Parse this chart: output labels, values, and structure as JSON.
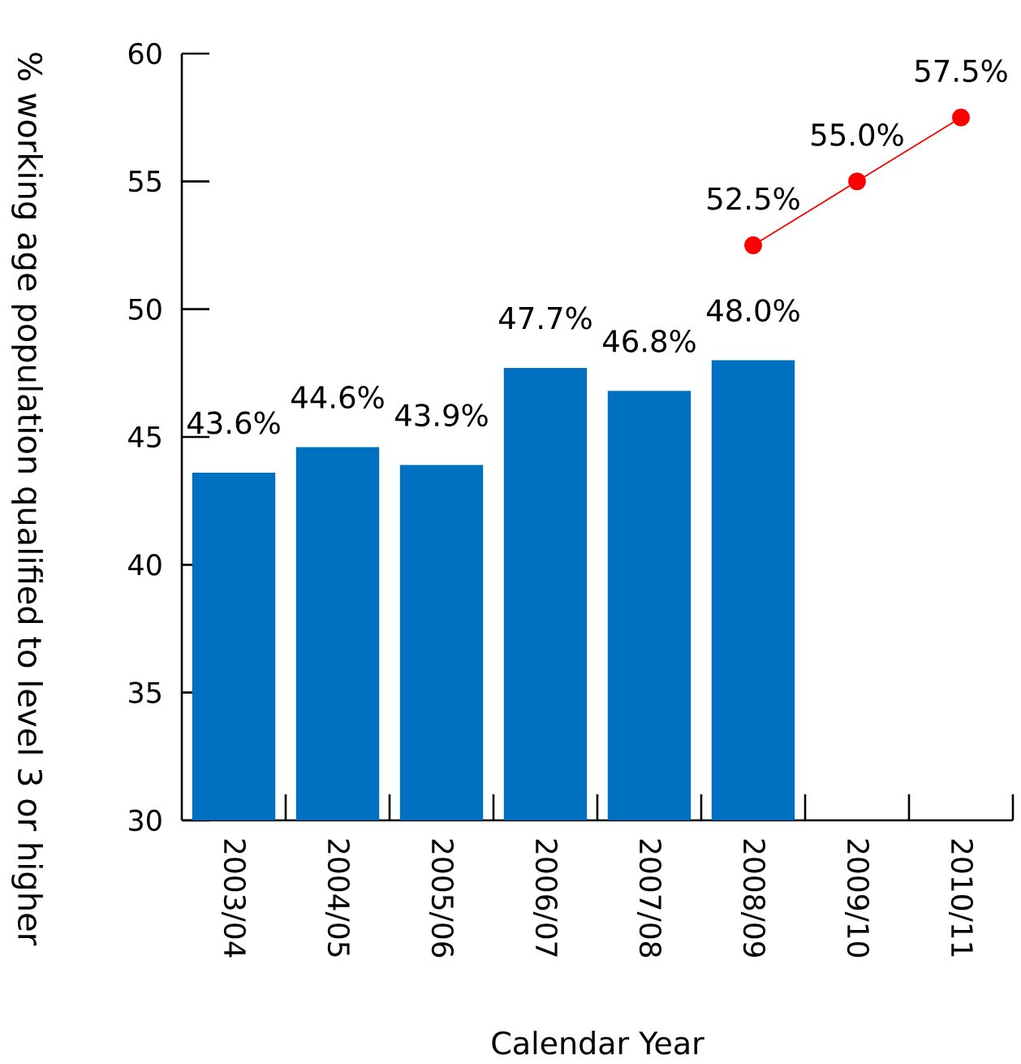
{
  "chart_data": {
    "type": "bar",
    "xlabel": "Calendar Year",
    "ylabel": "% working age population qualified to level 3 or higher",
    "categories": [
      "2003/04",
      "2004/05",
      "2005/06",
      "2006/07",
      "2007/08",
      "2008/09",
      "2009/10",
      "2010/11"
    ],
    "series": [
      {
        "color": "#0070c0",
        "values": [
          43.6,
          44.6,
          43.9,
          47.7,
          46.8,
          48.0,
          null,
          null
        ],
        "value_labels": [
          "43.6%",
          "44.6%",
          "43.9%",
          "47.7%",
          "46.8%",
          "48.0%",
          null,
          null
        ]
      },
      {
        "type": "line",
        "color": "#ff0000",
        "values": [
          null,
          null,
          null,
          null,
          null,
          52.5,
          55.0,
          57.5
        ],
        "value_labels": [
          null,
          null,
          null,
          null,
          null,
          "52.5%",
          "55.0%",
          "57.5%"
        ]
      }
    ],
    "marker": "circle",
    "ylim": [
      30,
      60
    ],
    "yticks": [
      30,
      35,
      40,
      45,
      50,
      55,
      60
    ]
  }
}
